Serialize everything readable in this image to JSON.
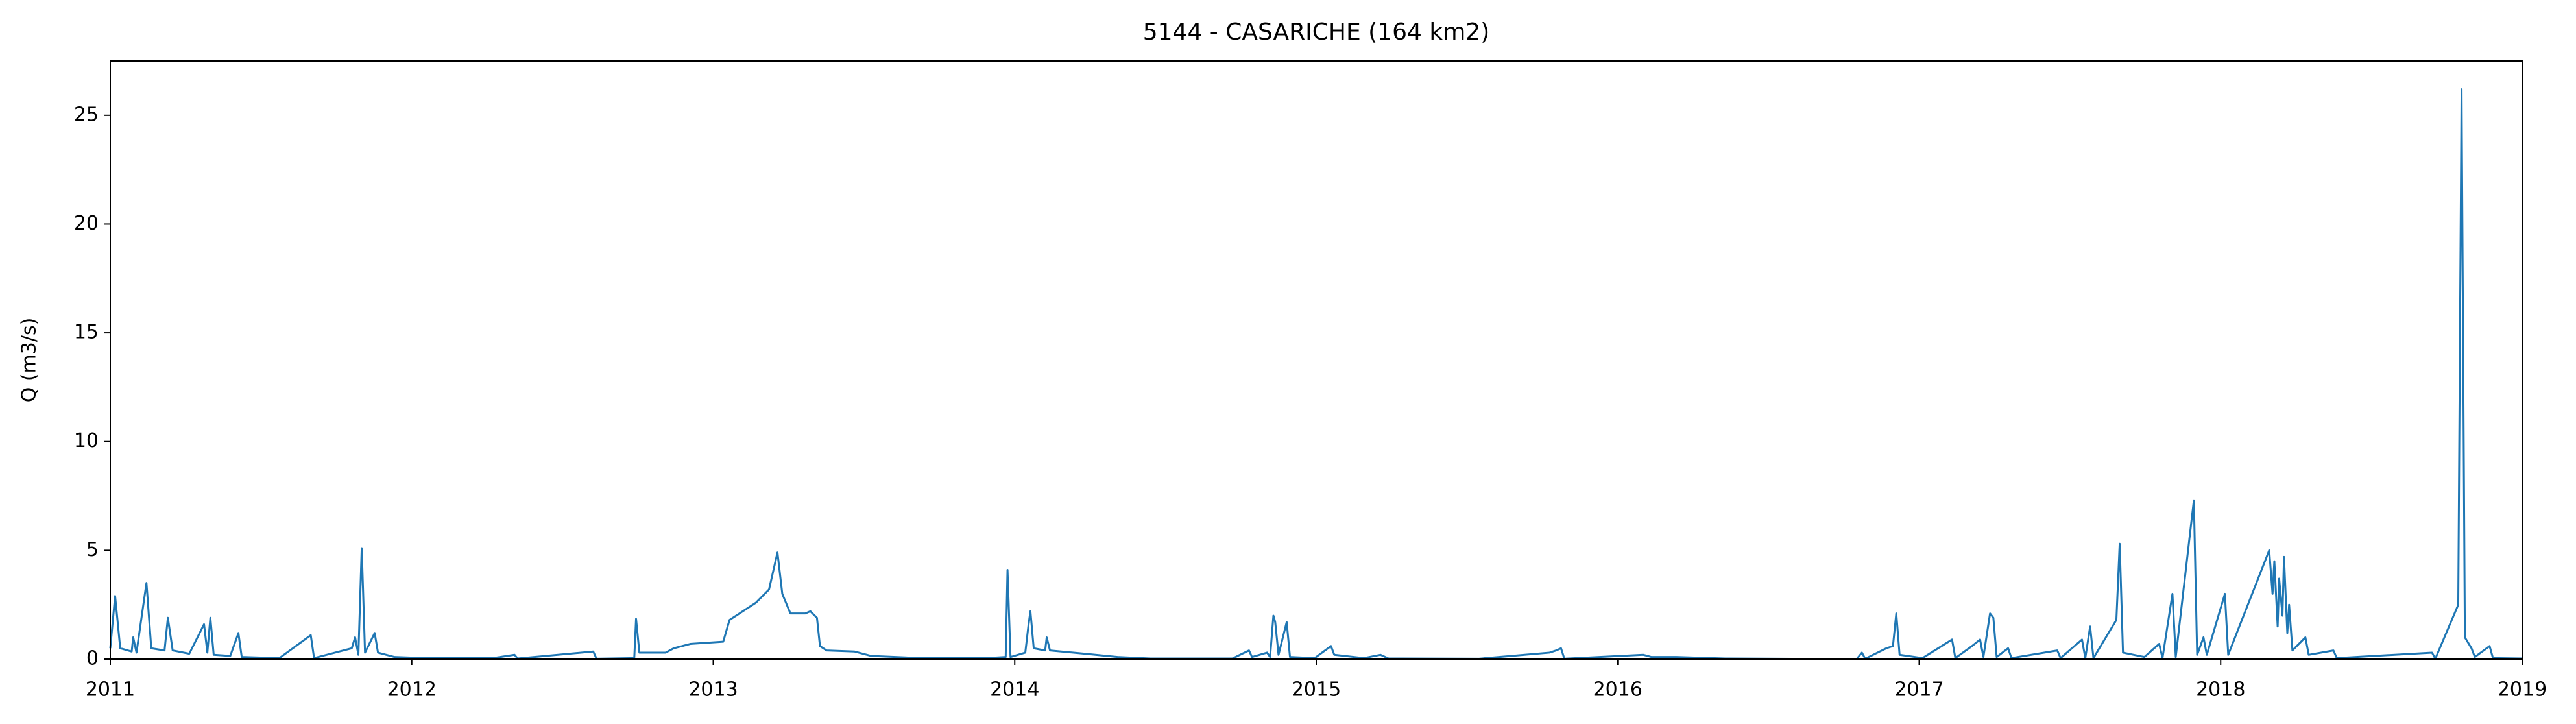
{
  "chart_data": {
    "type": "line",
    "title": "5144 - CASARICHE (164 km2)",
    "ylabel": "Q (m3/s)",
    "color": "#1f77b4",
    "xlim": [
      2011,
      2019
    ],
    "xticks": [
      2011,
      2012,
      2013,
      2014,
      2015,
      2016,
      2017,
      2018,
      2019
    ],
    "ylim": [
      0,
      27.5
    ],
    "yticks": [
      0,
      5,
      10,
      15,
      20,
      25
    ],
    "x": [
      2011.0,
      2011.016,
      2011.033,
      2011.071,
      2011.076,
      2011.087,
      2011.12,
      2011.136,
      2011.18,
      2011.191,
      2011.207,
      2011.262,
      2011.311,
      2011.322,
      2011.332,
      2011.343,
      2011.398,
      2011.425,
      2011.436,
      2011.561,
      2011.665,
      2011.676,
      2011.801,
      2011.812,
      2011.823,
      2011.834,
      2011.845,
      2011.877,
      2011.888,
      2011.943,
      2012.052,
      2012.27,
      2012.341,
      2012.351,
      2012.602,
      2012.613,
      2012.738,
      2012.744,
      2012.755,
      2012.842,
      2012.869,
      2012.924,
      2013.033,
      2013.054,
      2013.087,
      2013.142,
      2013.185,
      2013.213,
      2013.229,
      2013.256,
      2013.305,
      2013.322,
      2013.344,
      2013.354,
      2013.376,
      2013.469,
      2013.523,
      2013.687,
      2013.905,
      2013.97,
      2013.976,
      2013.986,
      2014.035,
      2014.046,
      2014.052,
      2014.063,
      2014.101,
      2014.106,
      2014.117,
      2014.232,
      2014.341,
      2014.45,
      2014.722,
      2014.777,
      2014.787,
      2014.837,
      2014.847,
      2014.858,
      2014.864,
      2014.875,
      2014.902,
      2014.913,
      2014.995,
      2015.049,
      2015.06,
      2015.158,
      2015.213,
      2015.24,
      2015.54,
      2015.774,
      2015.796,
      2015.812,
      2015.823,
      2016.085,
      2016.112,
      2016.194,
      2016.357,
      2016.63,
      2016.793,
      2016.81,
      2016.821,
      2016.891,
      2016.913,
      2016.924,
      2016.935,
      2017.011,
      2017.109,
      2017.12,
      2017.175,
      2017.202,
      2017.213,
      2017.235,
      2017.246,
      2017.257,
      2017.295,
      2017.306,
      2017.458,
      2017.469,
      2017.54,
      2017.551,
      2017.567,
      2017.578,
      2017.654,
      2017.665,
      2017.676,
      2017.747,
      2017.796,
      2017.807,
      2017.84,
      2017.851,
      2017.911,
      2017.922,
      2017.943,
      2017.954,
      2018.014,
      2018.025,
      2018.161,
      2018.172,
      2018.178,
      2018.189,
      2018.194,
      2018.205,
      2018.21,
      2018.221,
      2018.227,
      2018.238,
      2018.281,
      2018.292,
      2018.374,
      2018.385,
      2018.701,
      2018.712,
      2018.788,
      2018.799,
      2018.81,
      2018.832,
      2018.843,
      2018.892,
      2018.903,
      2019.0
    ],
    "values": [
      0.5,
      2.9,
      0.5,
      0.35,
      1.0,
      0.3,
      3.5,
      0.5,
      0.4,
      1.9,
      0.4,
      0.25,
      1.6,
      0.3,
      1.9,
      0.2,
      0.15,
      1.2,
      0.1,
      0.05,
      1.1,
      0.05,
      0.5,
      1.0,
      0.2,
      5.1,
      0.3,
      1.2,
      0.3,
      0.1,
      0.05,
      0.05,
      0.2,
      0.03,
      0.35,
      0.02,
      0.05,
      1.85,
      0.3,
      0.3,
      0.5,
      0.7,
      0.8,
      1.8,
      2.1,
      2.6,
      3.2,
      4.9,
      3.0,
      2.1,
      2.1,
      2.2,
      1.9,
      0.6,
      0.4,
      0.35,
      0.15,
      0.05,
      0.05,
      0.1,
      4.1,
      0.1,
      0.3,
      1.6,
      2.2,
      0.5,
      0.4,
      1.0,
      0.4,
      0.25,
      0.1,
      0.03,
      0.03,
      0.4,
      0.1,
      0.3,
      0.1,
      2.0,
      1.7,
      0.2,
      1.7,
      0.1,
      0.05,
      0.6,
      0.2,
      0.05,
      0.2,
      0.03,
      0.02,
      0.3,
      0.4,
      0.5,
      0.02,
      0.2,
      0.1,
      0.1,
      0.03,
      0.01,
      0.01,
      0.3,
      0.02,
      0.5,
      0.6,
      2.1,
      0.2,
      0.05,
      0.9,
      0.05,
      0.6,
      0.9,
      0.1,
      2.1,
      1.9,
      0.1,
      0.5,
      0.05,
      0.4,
      0.05,
      0.9,
      0.05,
      1.5,
      0.05,
      1.8,
      5.3,
      0.3,
      0.1,
      0.7,
      0.05,
      3.0,
      0.1,
      7.3,
      0.2,
      1.0,
      0.2,
      3.0,
      0.2,
      5.0,
      3.0,
      4.5,
      1.5,
      3.7,
      2.0,
      4.7,
      1.2,
      2.5,
      0.4,
      1.0,
      0.2,
      0.4,
      0.05,
      0.3,
      0.02,
      2.5,
      26.2,
      1.0,
      0.5,
      0.1,
      0.6,
      0.05,
      0.03
    ]
  }
}
